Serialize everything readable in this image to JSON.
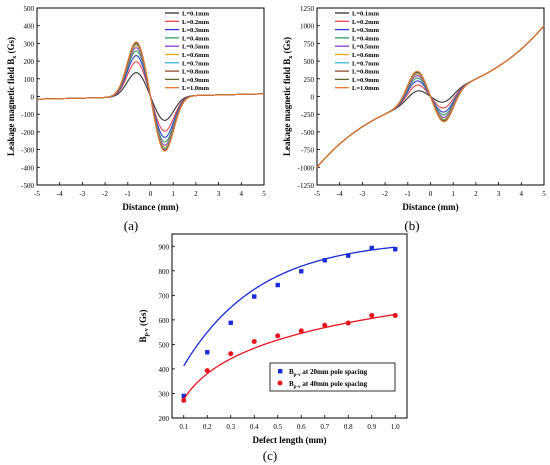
{
  "chart_data": [
    {
      "type": "line",
      "panel_label": "(a)",
      "xlabel": "Distance (mm)",
      "ylabel_main": "Leakage magnetic field B",
      "ylabel_sub": "x",
      "ylabel_unit": " (Gs)",
      "xlim": [
        -5,
        5
      ],
      "ylim": [
        -500,
        500
      ],
      "xticks": [
        -5,
        -4,
        -3,
        -2,
        -1,
        0,
        1,
        2,
        3,
        4,
        5
      ],
      "yticks": [
        -500,
        -400,
        -300,
        -200,
        -100,
        0,
        100,
        200,
        300,
        400,
        500
      ],
      "legend_position": "top-right",
      "series": [
        {
          "name": "L=0.1mm",
          "color": "#333333",
          "peak": 138,
          "valley": -138
        },
        {
          "name": "L=0.2mm",
          "color": "#e8454e",
          "peak": 200,
          "valley": -200
        },
        {
          "name": "L=0.3mm",
          "color": "#2f3fd6",
          "peak": 235,
          "valley": -235
        },
        {
          "name": "L=0.4mm",
          "color": "#2d9d5a",
          "peak": 262,
          "valley": -262
        },
        {
          "name": "L=0.5mm",
          "color": "#8a3ccf",
          "peak": 280,
          "valley": -280
        },
        {
          "name": "L=0.6mm",
          "color": "#e8a317",
          "peak": 292,
          "valley": -292
        },
        {
          "name": "L=0.7mm",
          "color": "#38b6d8",
          "peak": 300,
          "valley": -300
        },
        {
          "name": "L=0.8mm",
          "color": "#8e4a2b",
          "peak": 306,
          "valley": -306
        },
        {
          "name": "L=0.9mm",
          "color": "#5b6b2f",
          "peak": 310,
          "valley": -310
        },
        {
          "name": "L=1.0mm",
          "color": "#e8752b",
          "peak": 313,
          "valley": -313
        }
      ]
    },
    {
      "type": "line",
      "panel_label": "(b)",
      "xlabel": "Distance (mm)",
      "ylabel_main": "Leakage magnetic field B",
      "ylabel_sub": "x",
      "ylabel_unit": " (Gs)",
      "xlim": [
        -5,
        5
      ],
      "ylim": [
        -1250,
        1250
      ],
      "xticks": [
        -5,
        -4,
        -3,
        -2,
        -1,
        0,
        1,
        2,
        3,
        4,
        5
      ],
      "yticks": [
        -1250,
        -1000,
        -750,
        -500,
        -250,
        0,
        250,
        500,
        750,
        1000,
        1250
      ],
      "background_range": [
        -1000,
        1000
      ],
      "legend_position": "top-left",
      "series": [
        {
          "name": "L=0.1mm",
          "color": "#333333",
          "peak": 145,
          "valley": -145
        },
        {
          "name": "L=0.2mm",
          "color": "#e8454e",
          "peak": 230,
          "valley": -230
        },
        {
          "name": "L=0.3mm",
          "color": "#2f3fd6",
          "peak": 290,
          "valley": -290
        },
        {
          "name": "L=0.4mm",
          "color": "#2d9d5a",
          "peak": 330,
          "valley": -330
        },
        {
          "name": "L=0.5mm",
          "color": "#8a3ccf",
          "peak": 365,
          "valley": -365
        },
        {
          "name": "L=0.6mm",
          "color": "#e8a317",
          "peak": 390,
          "valley": -390
        },
        {
          "name": "L=0.7mm",
          "color": "#38b6d8",
          "peak": 405,
          "valley": -405
        },
        {
          "name": "L=0.8mm",
          "color": "#8e4a2b",
          "peak": 415,
          "valley": -415
        },
        {
          "name": "L=0.9mm",
          "color": "#5b6b2f",
          "peak": 422,
          "valley": -422
        },
        {
          "name": "L=1.0mm",
          "color": "#e8752b",
          "peak": 428,
          "valley": -428
        }
      ]
    },
    {
      "type": "scatter",
      "panel_label": "(c)",
      "xlabel": "Defect length (mm)",
      "ylabel_main": "B",
      "ylabel_sub": "p-v",
      "ylabel_unit": "  (Gs)",
      "xlim": [
        0.05,
        1.05
      ],
      "ylim": [
        200,
        950
      ],
      "xticks": [
        0.1,
        0.2,
        0.3,
        0.4,
        0.5,
        0.6,
        0.7,
        0.8,
        0.9,
        1.0
      ],
      "yticks": [
        200,
        300,
        400,
        500,
        600,
        700,
        800,
        900
      ],
      "x": [
        0.1,
        0.2,
        0.3,
        0.4,
        0.5,
        0.6,
        0.7,
        0.8,
        0.9,
        1.0
      ],
      "legend_position": "bottom-right",
      "series": [
        {
          "name_main": "B",
          "name_sub": "p-v",
          "name_rest": " at 20mm pole spacing",
          "color": "#1a2bd8",
          "marker": "square",
          "values": [
            290,
            468,
            588,
            695,
            742,
            798,
            843,
            862,
            893,
            888
          ],
          "fit": {
            "a": 928,
            "b": 703,
            "k": 3.1
          }
        },
        {
          "name_main": "B",
          "name_sub": "p-v",
          "name_rest": " at 40mm pole spacing",
          "color": "#e8131f",
          "marker": "circle",
          "values": [
            272,
            393,
            462,
            512,
            535,
            555,
            578,
            587,
            618,
            618
          ],
          "fit": {
            "type": "log",
            "a": 622,
            "b": 150
          }
        }
      ]
    }
  ]
}
